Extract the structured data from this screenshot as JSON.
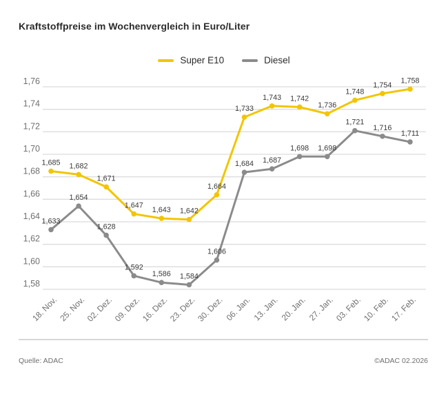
{
  "chart_data": {
    "type": "line",
    "title": "Kraftstoffpreise im Wochenvergleich in Euro/Liter",
    "unit": "Euro/Liter",
    "categories": [
      "18. Nov.",
      "25. Nov.",
      "02. Dez.",
      "09. Dez.",
      "16. Dez.",
      "23. Dez.",
      "30. Dez.",
      "06. Jan.",
      "13. Jan.",
      "20. Jan.",
      "27. Jan.",
      "03. Feb.",
      "10. Feb.",
      "17. Feb."
    ],
    "series": [
      {
        "name": "Super E10",
        "color": "#F2C500",
        "values": [
          1.685,
          1.682,
          1.671,
          1.647,
          1.643,
          1.642,
          1.664,
          1.733,
          1.743,
          1.742,
          1.736,
          1.748,
          1.754,
          1.758
        ],
        "point_labels": [
          "1,685",
          "1,682",
          "1,671",
          "1,647",
          "1,643",
          "1,642",
          "1,664",
          "1,733",
          "1,743",
          "1,742",
          "1,736",
          "1,748",
          "1,754",
          "1,758"
        ]
      },
      {
        "name": "Diesel",
        "color": "#8B8B8B",
        "values": [
          1.633,
          1.654,
          1.628,
          1.592,
          1.586,
          1.584,
          1.606,
          1.684,
          1.687,
          1.698,
          1.698,
          1.721,
          1.716,
          1.711
        ],
        "point_labels": [
          "1,633",
          "1,654",
          "1,628",
          "1,592",
          "1,586",
          "1,584",
          "1,606",
          "1,684",
          "1,687",
          "1,698",
          "1,698",
          "1,721",
          "1,716",
          "1,711"
        ]
      }
    ],
    "ylim": [
      1.58,
      1.76
    ],
    "ytick_values": [
      1.58,
      1.6,
      1.62,
      1.64,
      1.66,
      1.68,
      1.7,
      1.72,
      1.74,
      1.76
    ],
    "ytick_labels": [
      "1,58",
      "1,60",
      "1,62",
      "1,64",
      "1,66",
      "1,68",
      "1,70",
      "1,72",
      "1,74",
      "1,76"
    ],
    "xlabel": "",
    "ylabel": "",
    "grid": true,
    "legend_position": "top-center",
    "colors": {
      "gridline": "#dcdcdc",
      "tick_text": "#707070",
      "point_label_text": "#3a3a3a"
    }
  },
  "footer": {
    "source": "Quelle: ADAC",
    "copyright": "©ADAC 02.2026"
  }
}
